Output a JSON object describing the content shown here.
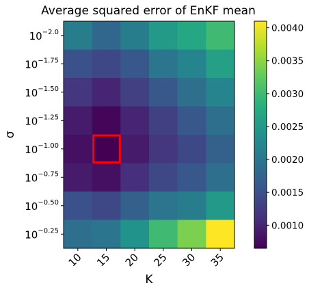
{
  "chart_data": {
    "type": "heatmap",
    "title": "Average squared error of EnKF mean",
    "xlabel": "K",
    "ylabel": "σ",
    "x_categories": [
      "10",
      "15",
      "20",
      "25",
      "30",
      "35"
    ],
    "y_categories": [
      {
        "base": "10",
        "exp": "−2.0"
      },
      {
        "base": "10",
        "exp": "−1.75"
      },
      {
        "base": "10",
        "exp": "−1.50"
      },
      {
        "base": "10",
        "exp": "−1.25"
      },
      {
        "base": "10",
        "exp": "−1.00"
      },
      {
        "base": "10",
        "exp": "−0.75"
      },
      {
        "base": "10",
        "exp": "−0.50"
      },
      {
        "base": "10",
        "exp": "−0.25"
      }
    ],
    "values": [
      [
        0.0021,
        0.0018,
        0.0021,
        0.0025,
        0.0027,
        0.003
      ],
      [
        0.0015,
        0.0014,
        0.0016,
        0.002,
        0.0022,
        0.0026
      ],
      [
        0.0012,
        0.001,
        0.0013,
        0.0016,
        0.0019,
        0.0022
      ],
      [
        0.0009,
        0.0007,
        0.001,
        0.0013,
        0.0016,
        0.0019
      ],
      [
        0.0008,
        0.00065,
        0.0009,
        0.0012,
        0.0014,
        0.0017
      ],
      [
        0.0009,
        0.0008,
        0.0011,
        0.0014,
        0.0016,
        0.0019
      ],
      [
        0.0015,
        0.0014,
        0.0017,
        0.002,
        0.0021,
        0.0025
      ],
      [
        0.0019,
        0.002,
        0.0024,
        0.003,
        0.0034,
        0.0041
      ]
    ],
    "highlight": {
      "row": 4,
      "col": 1,
      "color": "#ff0000"
    },
    "colormap": "viridis",
    "vmin": 0.00065,
    "vmax": 0.0041,
    "colorbar_ticks": [
      "0.0010",
      "0.0015",
      "0.0020",
      "0.0025",
      "0.0030",
      "0.0035",
      "0.0040"
    ]
  }
}
